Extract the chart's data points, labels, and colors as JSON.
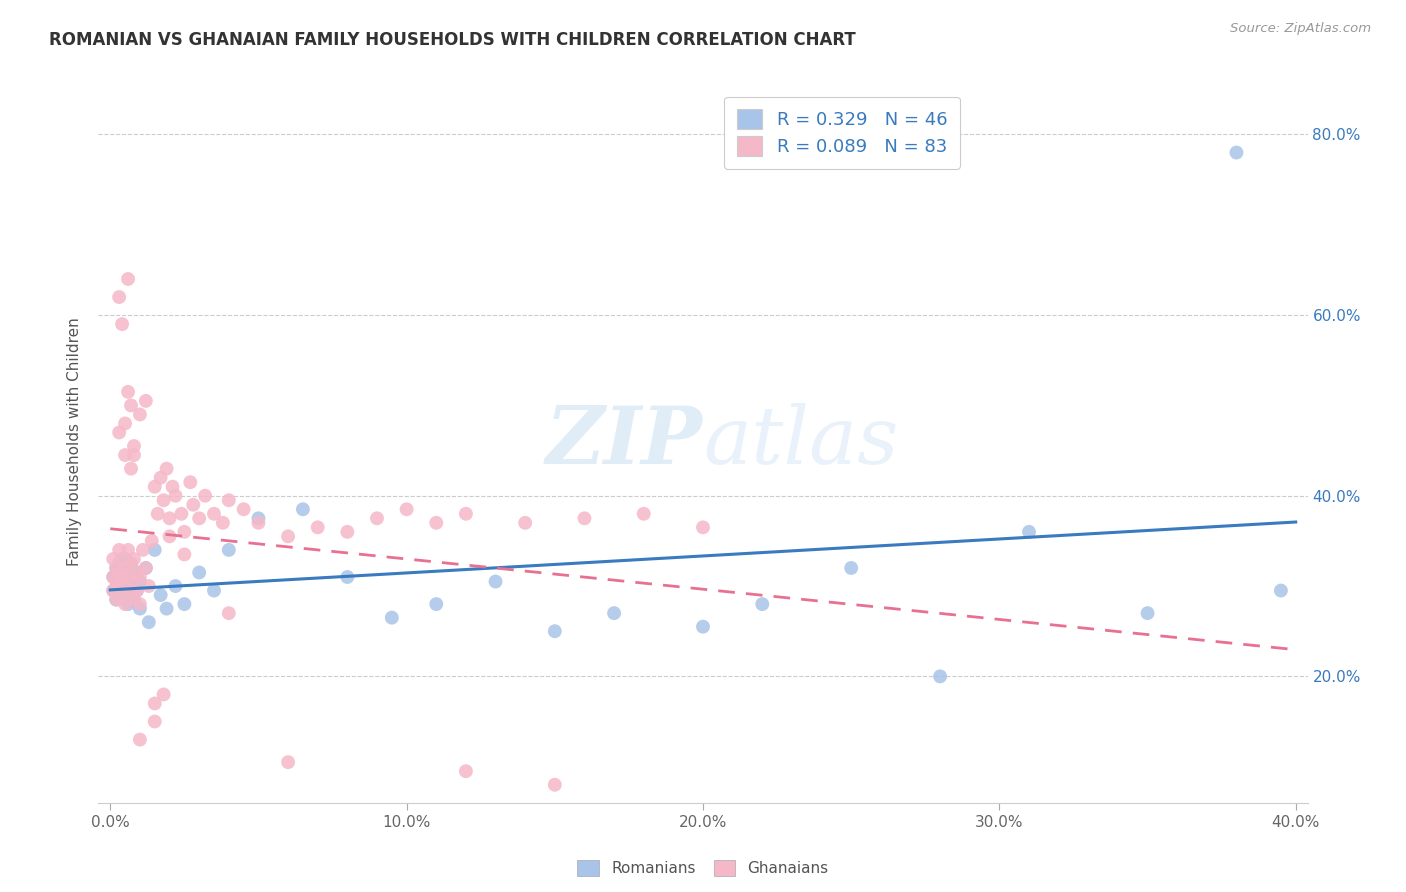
{
  "title": "ROMANIAN VS GHANAIAN FAMILY HOUSEHOLDS WITH CHILDREN CORRELATION CHART",
  "source": "Source: ZipAtlas.com",
  "ylabel_label": "Family Households with Children",
  "legend_top": [
    "R = 0.329   N = 46",
    "R = 0.089   N = 83"
  ],
  "legend_bottom": [
    "Romanians",
    "Ghanaians"
  ],
  "R_romanian": 0.329,
  "N_romanian": 46,
  "R_ghanaian": 0.089,
  "N_ghanaian": 83,
  "color_romanian": "#a8c4e8",
  "color_ghanaian": "#f5b8c8",
  "line_color_romanian": "#3a7abf",
  "line_color_ghanaian": "#e87090",
  "watermark_zip": "ZIP",
  "watermark_atlas": "atlas",
  "bg_color": "#ffffff",
  "xlim": [
    -0.004,
    0.404
  ],
  "ylim": [
    0.06,
    0.86
  ],
  "x_ticks": [
    0.0,
    0.1,
    0.2,
    0.3,
    0.4
  ],
  "x_tick_labels": [
    "0.0%",
    "10.0%",
    "20.0%",
    "30.0%",
    "40.0%"
  ],
  "y_ticks": [
    0.2,
    0.4,
    0.6,
    0.8
  ],
  "y_tick_labels": [
    "20.0%",
    "40.0%",
    "60.0%",
    "80.0%"
  ],
  "rom_x": [
    0.001,
    0.001,
    0.002,
    0.002,
    0.003,
    0.003,
    0.004,
    0.004,
    0.005,
    0.005,
    0.006,
    0.006,
    0.007,
    0.007,
    0.008,
    0.008,
    0.009,
    0.009,
    0.01,
    0.01,
    0.012,
    0.013,
    0.015,
    0.017,
    0.019,
    0.022,
    0.025,
    0.03,
    0.035,
    0.04,
    0.05,
    0.065,
    0.08,
    0.095,
    0.11,
    0.13,
    0.15,
    0.17,
    0.2,
    0.22,
    0.25,
    0.28,
    0.31,
    0.35,
    0.38,
    0.395
  ],
  "rom_y": [
    0.295,
    0.31,
    0.32,
    0.285,
    0.3,
    0.325,
    0.29,
    0.315,
    0.305,
    0.33,
    0.28,
    0.295,
    0.31,
    0.325,
    0.3,
    0.285,
    0.315,
    0.295,
    0.305,
    0.275,
    0.32,
    0.26,
    0.34,
    0.29,
    0.275,
    0.3,
    0.28,
    0.315,
    0.295,
    0.34,
    0.375,
    0.385,
    0.31,
    0.265,
    0.28,
    0.305,
    0.25,
    0.27,
    0.255,
    0.28,
    0.32,
    0.2,
    0.36,
    0.27,
    0.78,
    0.295
  ],
  "gha_x": [
    0.001,
    0.001,
    0.001,
    0.002,
    0.002,
    0.002,
    0.003,
    0.003,
    0.003,
    0.004,
    0.004,
    0.004,
    0.005,
    0.005,
    0.005,
    0.006,
    0.006,
    0.007,
    0.007,
    0.008,
    0.008,
    0.008,
    0.009,
    0.009,
    0.01,
    0.01,
    0.011,
    0.012,
    0.013,
    0.014,
    0.015,
    0.016,
    0.017,
    0.018,
    0.019,
    0.02,
    0.021,
    0.022,
    0.024,
    0.025,
    0.027,
    0.028,
    0.03,
    0.032,
    0.035,
    0.038,
    0.04,
    0.045,
    0.05,
    0.06,
    0.07,
    0.08,
    0.09,
    0.1,
    0.11,
    0.12,
    0.14,
    0.16,
    0.18,
    0.2,
    0.003,
    0.004,
    0.005,
    0.006,
    0.007,
    0.008,
    0.01,
    0.012,
    0.015,
    0.018,
    0.003,
    0.005,
    0.006,
    0.007,
    0.008,
    0.01,
    0.015,
    0.02,
    0.025,
    0.04,
    0.06,
    0.12,
    0.15
  ],
  "gha_y": [
    0.295,
    0.31,
    0.33,
    0.285,
    0.305,
    0.32,
    0.3,
    0.315,
    0.34,
    0.29,
    0.31,
    0.33,
    0.28,
    0.3,
    0.32,
    0.34,
    0.31,
    0.295,
    0.325,
    0.285,
    0.305,
    0.33,
    0.295,
    0.315,
    0.28,
    0.31,
    0.34,
    0.32,
    0.3,
    0.35,
    0.41,
    0.38,
    0.42,
    0.395,
    0.43,
    0.375,
    0.41,
    0.4,
    0.38,
    0.36,
    0.415,
    0.39,
    0.375,
    0.4,
    0.38,
    0.37,
    0.395,
    0.385,
    0.37,
    0.355,
    0.365,
    0.36,
    0.375,
    0.385,
    0.37,
    0.38,
    0.37,
    0.375,
    0.38,
    0.365,
    0.62,
    0.59,
    0.48,
    0.64,
    0.5,
    0.455,
    0.49,
    0.505,
    0.15,
    0.18,
    0.47,
    0.445,
    0.515,
    0.43,
    0.445,
    0.13,
    0.17,
    0.355,
    0.335,
    0.27,
    0.105,
    0.095,
    0.08
  ]
}
